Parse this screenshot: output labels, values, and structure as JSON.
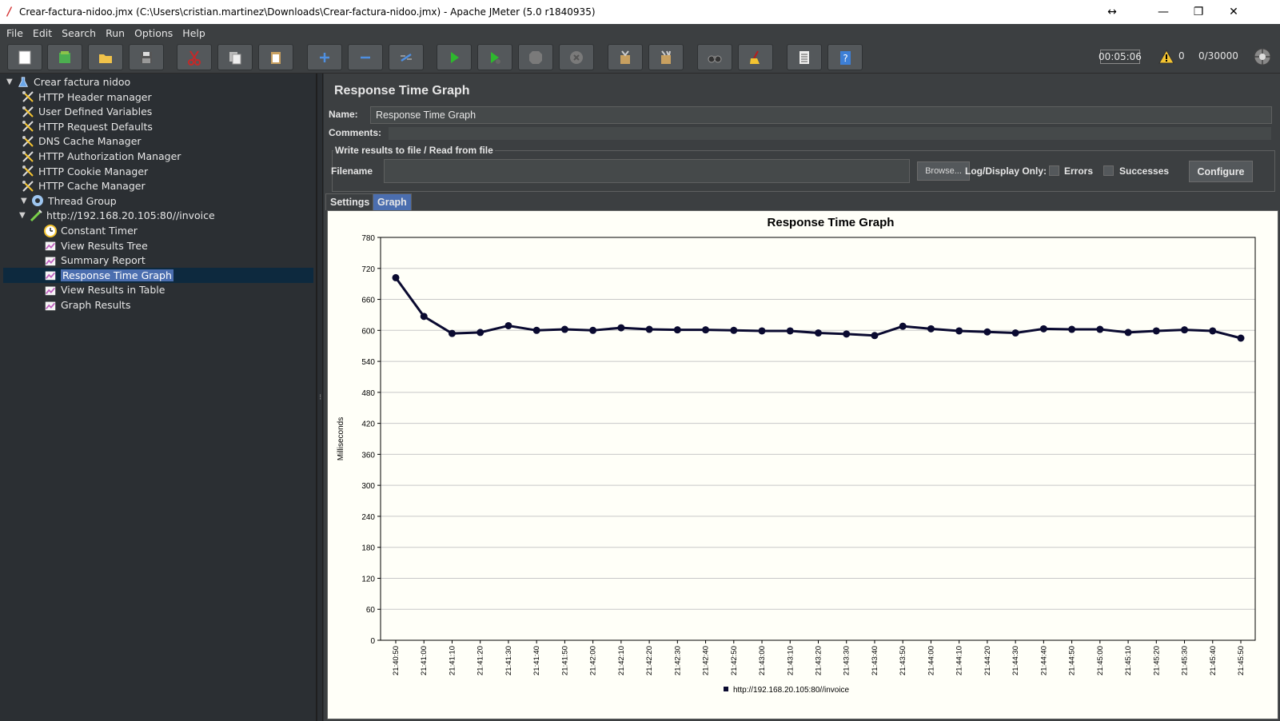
{
  "window": {
    "title": "Crear-factura-nidoo.jmx (C:\\Users\\cristian.martinez\\Downloads\\Crear-factura-nidoo.jmx) - Apache JMeter (5.0 r1840935)"
  },
  "menu": [
    "File",
    "Edit",
    "Search",
    "Run",
    "Options",
    "Help"
  ],
  "toolbar": {
    "timer": "00:05:06",
    "warnings": "0",
    "threads": "0/30000",
    "buttons": [
      "new-icon",
      "templates-icon",
      "open-icon",
      "save-icon",
      "cut-icon",
      "copy-icon",
      "paste-icon",
      "expand-icon",
      "collapse-icon",
      "toggle-icon",
      "start-icon",
      "start-no-pause-icon",
      "stop-icon",
      "shutdown-icon",
      "clear-icon",
      "clear-all-icon",
      "search-icon",
      "reset-search-icon",
      "function-helper-icon",
      "help-icon"
    ]
  },
  "tree": {
    "items": [
      {
        "label": "Crear factura nidoo",
        "icon": "test-plan-icon",
        "level": 0,
        "expanded": true
      },
      {
        "label": "HTTP Header manager",
        "icon": "config-element-icon",
        "level": 1
      },
      {
        "label": "User Defined Variables",
        "icon": "config-element-icon",
        "level": 1
      },
      {
        "label": "HTTP Request Defaults",
        "icon": "config-element-icon",
        "level": 1
      },
      {
        "label": "DNS Cache Manager",
        "icon": "config-element-icon",
        "level": 1
      },
      {
        "label": "HTTP Authorization Manager",
        "icon": "config-element-icon",
        "level": 1
      },
      {
        "label": "HTTP Cookie Manager",
        "icon": "config-element-icon",
        "level": 1
      },
      {
        "label": "HTTP Cache Manager",
        "icon": "config-element-icon",
        "level": 1
      },
      {
        "label": "Thread Group",
        "icon": "thread-group-icon",
        "level": 1,
        "expanded": true
      },
      {
        "label": "http://192.168.20.105:80//invoice",
        "icon": "sampler-icon",
        "level": 2,
        "expanded": true
      },
      {
        "label": "Constant Timer",
        "icon": "timer-icon",
        "level": 3
      },
      {
        "label": "View Results Tree",
        "icon": "listener-icon",
        "level": 3
      },
      {
        "label": "Summary Report",
        "icon": "listener-icon",
        "level": 3
      },
      {
        "label": "Response Time Graph",
        "icon": "listener-icon",
        "level": 3,
        "selected": true
      },
      {
        "label": "View Results in Table",
        "icon": "listener-icon",
        "level": 3
      },
      {
        "label": "Graph Results",
        "icon": "listener-icon",
        "level": 3
      }
    ]
  },
  "panel": {
    "title": "Response Time Graph",
    "name_label": "Name:",
    "name_value": "Response Time Graph",
    "comments_label": "Comments:",
    "fieldset_label": "Write results to file / Read from file",
    "filename_label": "Filename",
    "filename_value": "",
    "browse_label": "Browse...",
    "log_display_label": "Log/Display Only:",
    "errors_label": "Errors",
    "successes_label": "Successes",
    "configure_label": "Configure",
    "tabs": [
      "Settings",
      "Graph"
    ],
    "active_tab": "Graph"
  },
  "chart_data": {
    "type": "line",
    "title": "Response Time Graph",
    "ylabel": "Milliseconds",
    "xlabel": "",
    "ylim": [
      0,
      780
    ],
    "yticks": [
      0,
      60,
      120,
      180,
      240,
      300,
      360,
      420,
      480,
      540,
      600,
      660,
      720,
      780
    ],
    "x": [
      "21:40:50",
      "21:41:00",
      "21:41:10",
      "21:41:20",
      "21:41:30",
      "21:41:40",
      "21:41:50",
      "21:42:00",
      "21:42:10",
      "21:42:20",
      "21:42:30",
      "21:42:40",
      "21:42:50",
      "21:43:00",
      "21:43:10",
      "21:43:20",
      "21:43:30",
      "21:43:40",
      "21:43:50",
      "21:44:00",
      "21:44:10",
      "21:44:20",
      "21:44:30",
      "21:44:40",
      "21:44:50",
      "21:45:00",
      "21:45:10",
      "21:45:20",
      "21:45:30",
      "21:45:40",
      "21:45:50"
    ],
    "series": [
      {
        "name": "http://192.168.20.105:80//invoice",
        "color": "#0a0a30",
        "values": [
          702,
          627,
          594,
          596,
          609,
          600,
          602,
          600,
          605,
          602,
          601,
          601,
          600,
          599,
          599,
          595,
          593,
          590,
          608,
          603,
          599,
          597,
          595,
          603,
          602,
          602,
          596,
          599,
          601,
          599,
          585
        ]
      }
    ],
    "grid": true,
    "legend": "bottom"
  }
}
